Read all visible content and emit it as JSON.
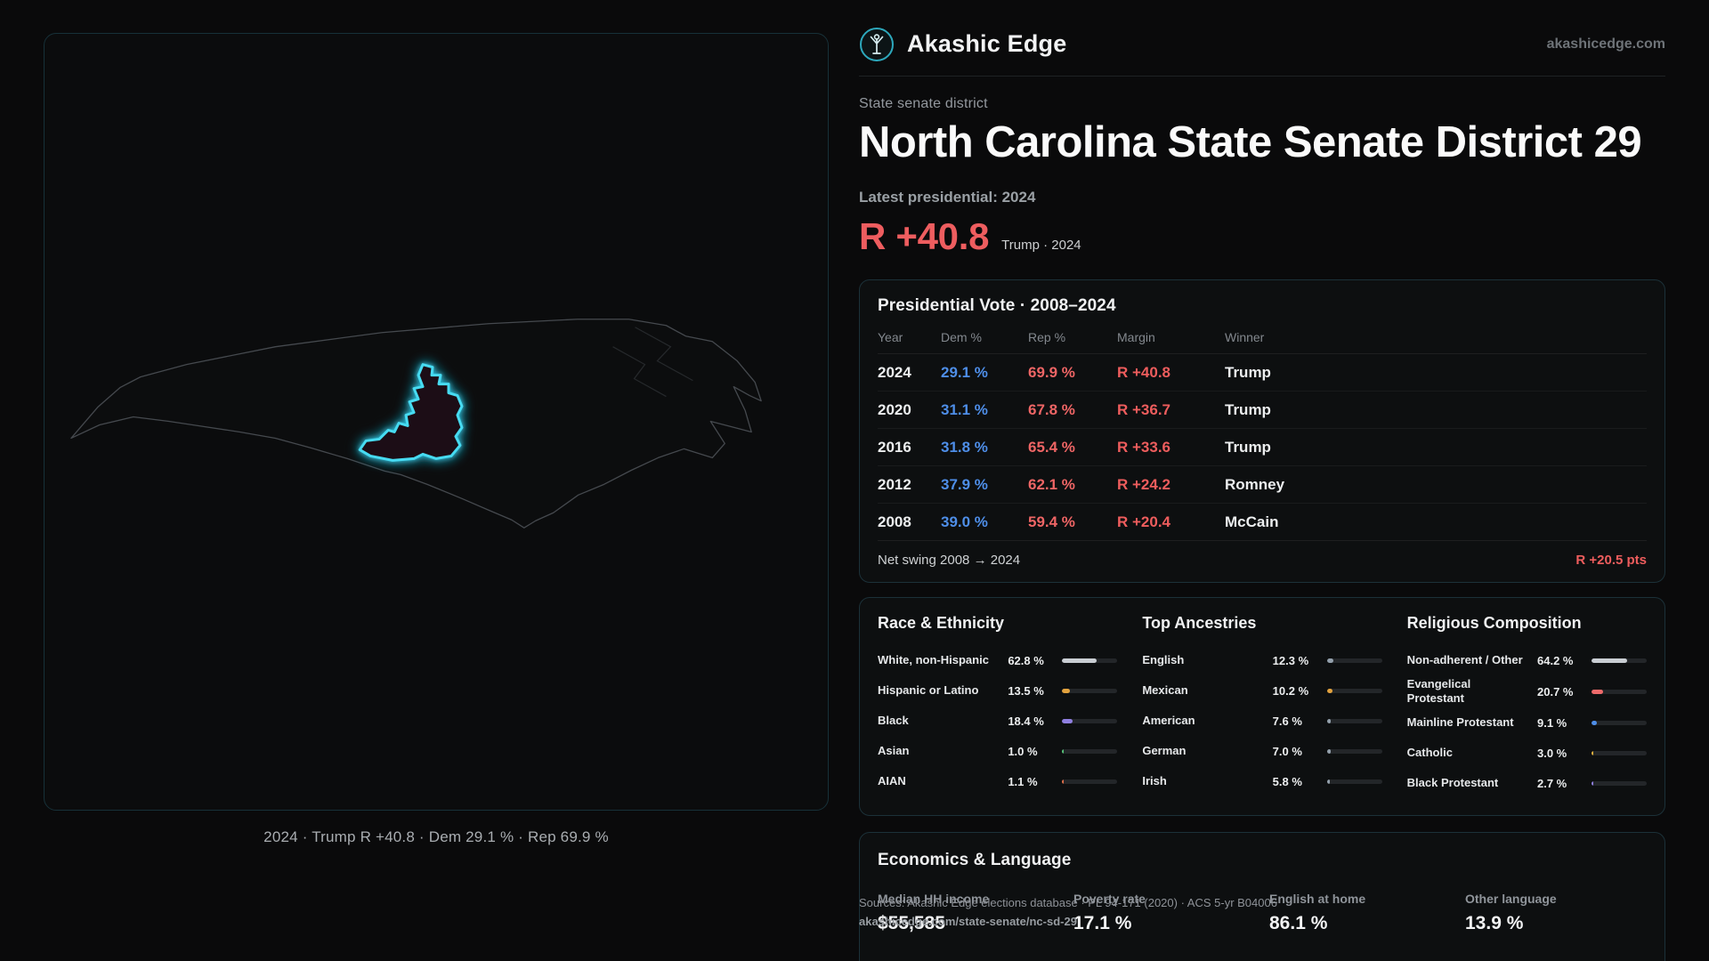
{
  "brand": {
    "name": "Akashic Edge",
    "domain": "akashicedge.com"
  },
  "page": {
    "kicker": "State senate district",
    "title": "North Carolina State Senate District 29",
    "latest_label": "Latest presidential: 2024",
    "headline_margin": "R +40.8",
    "headline_context": "Trump · 2024"
  },
  "map": {
    "caption": "2024 · Trump R +40.8 · Dem 29.1 % · Rep 69.9 %"
  },
  "presidential": {
    "title": "Presidential Vote · 2008–2024",
    "columns": [
      "Year",
      "Dem %",
      "Rep %",
      "Margin",
      "Winner"
    ],
    "rows": [
      {
        "year": "2024",
        "dem": "29.1 %",
        "rep": "69.9 %",
        "margin": "R +40.8",
        "winner": "Trump"
      },
      {
        "year": "2020",
        "dem": "31.1 %",
        "rep": "67.8 %",
        "margin": "R +36.7",
        "winner": "Trump"
      },
      {
        "year": "2016",
        "dem": "31.8 %",
        "rep": "65.4 %",
        "margin": "R +33.6",
        "winner": "Trump"
      },
      {
        "year": "2012",
        "dem": "37.9 %",
        "rep": "62.1 %",
        "margin": "R +24.2",
        "winner": "Romney"
      },
      {
        "year": "2008",
        "dem": "39.0 %",
        "rep": "59.4 %",
        "margin": "R +20.4",
        "winner": "McCain"
      }
    ],
    "net_swing_label": "Net swing 2008 → 2024",
    "net_swing_value": "R +20.5 pts"
  },
  "race": {
    "title": "Race & Ethnicity",
    "rows": [
      {
        "label": "White, non-Hispanic",
        "value": "62.8 %",
        "pct": 62.8,
        "color": "#c9ced3"
      },
      {
        "label": "Hispanic or Latino",
        "value": "13.5 %",
        "pct": 13.5,
        "color": "#e2a23e"
      },
      {
        "label": "Black",
        "value": "18.4 %",
        "pct": 18.4,
        "color": "#8f7fe0"
      },
      {
        "label": "Asian",
        "value": "1.0 %",
        "pct": 1.0,
        "color": "#57c278"
      },
      {
        "label": "AIAN",
        "value": "1.1 %",
        "pct": 1.1,
        "color": "#e0704a"
      }
    ]
  },
  "ancestries": {
    "title": "Top Ancestries",
    "rows": [
      {
        "label": "English",
        "value": "12.3 %",
        "pct": 12.3,
        "color": "#93a0ac"
      },
      {
        "label": "Mexican",
        "value": "10.2 %",
        "pct": 10.2,
        "color": "#e2a23e"
      },
      {
        "label": "American",
        "value": "7.6 %",
        "pct": 7.6,
        "color": "#93a0ac"
      },
      {
        "label": "German",
        "value": "7.0 %",
        "pct": 7.0,
        "color": "#93a0ac"
      },
      {
        "label": "Irish",
        "value": "5.8 %",
        "pct": 5.8,
        "color": "#93a0ac"
      }
    ]
  },
  "religion": {
    "title": "Religious Composition",
    "rows": [
      {
        "label": "Non-adherent / Other",
        "value": "64.2 %",
        "pct": 64.2,
        "color": "#c9ced3"
      },
      {
        "label": "Evangelical Protestant",
        "value": "20.7 %",
        "pct": 20.7,
        "color": "#ee6a6a"
      },
      {
        "label": "Mainline Protestant",
        "value": "9.1 %",
        "pct": 9.1,
        "color": "#4e8ee8"
      },
      {
        "label": "Catholic",
        "value": "3.0 %",
        "pct": 3.0,
        "color": "#e2b23e"
      },
      {
        "label": "Black Protestant",
        "value": "2.7 %",
        "pct": 2.7,
        "color": "#8f7fe0"
      }
    ]
  },
  "economics": {
    "title": "Economics & Language",
    "stats": [
      {
        "label": "Median HH income",
        "value": "$55,585"
      },
      {
        "label": "Poverty rate",
        "value": "17.1 %"
      },
      {
        "label": "English at home",
        "value": "86.1 %"
      },
      {
        "label": "Other language",
        "value": "13.9 %"
      }
    ]
  },
  "footer": {
    "sources": "Sources: Akashic Edge elections database · PL 94-171 (2020) · ACS 5-yr B04006",
    "permalink": "akashicedge.com/state-senate/nc-sd-29"
  },
  "colors": {
    "dem": "#4e8ee8",
    "rep": "#ee5f5f",
    "accent": "#38d3ef"
  }
}
